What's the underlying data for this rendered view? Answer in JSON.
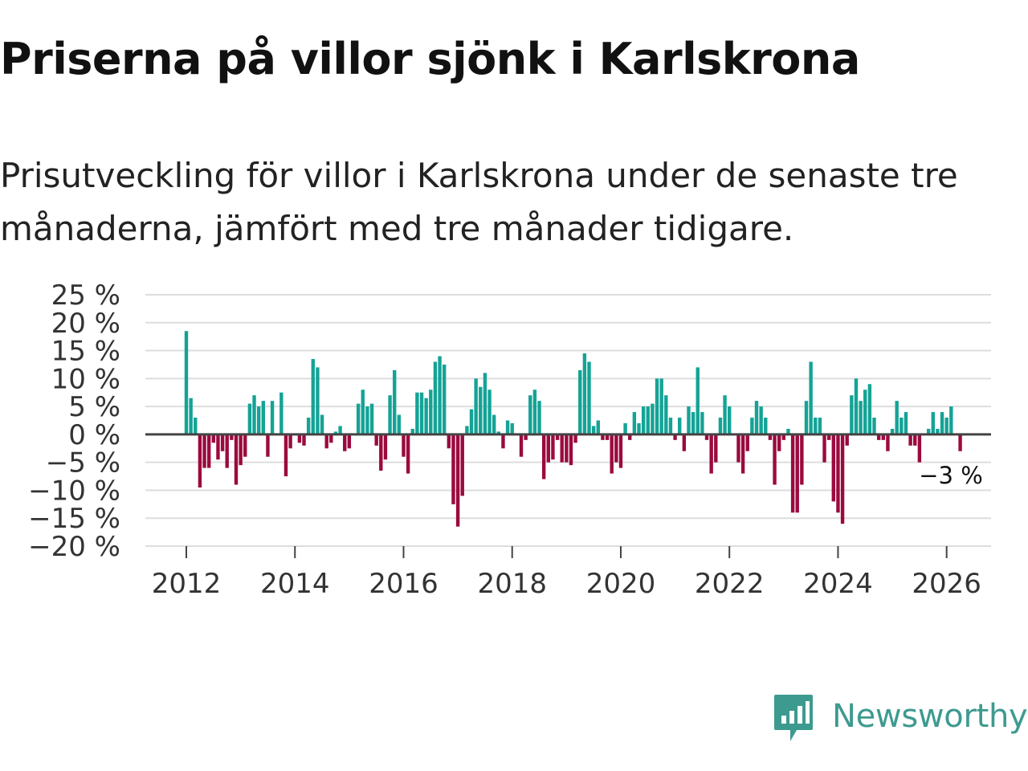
{
  "title": "Priserna på villor sjönk i Karlskrona",
  "subtitle": "Prisutveckling för villor i Karlskrona under de senaste tre månaderna, jämfört med tre månader tidigare.",
  "logo": {
    "text": "Newsworthy",
    "icon": "newsworthy-chart-bubble-icon"
  },
  "colors": {
    "positive": "#14a396",
    "negative": "#9b0a3e",
    "grid": "#dddddd",
    "zero_line": "#444444",
    "logo": "#3d9a8f"
  },
  "chart_data": {
    "type": "bar",
    "title": "Priserna på villor sjönk i Karlskrona",
    "ylabel": "",
    "xlabel": "",
    "ylim": [
      -20,
      25
    ],
    "yticks": [
      25,
      20,
      15,
      10,
      5,
      0,
      -5,
      -10,
      -15,
      -20
    ],
    "ytick_labels": [
      "25 %",
      "20 %",
      "15 %",
      "10 %",
      "5 %",
      "0 %",
      "−5 %",
      "−10 %",
      "−15 %",
      "−20 %"
    ],
    "xticks": [
      "2012",
      "2014",
      "2016",
      "2018",
      "2020",
      "2022",
      "2024",
      "2026"
    ],
    "start": "2012-01",
    "frequency": "monthly",
    "last_value_label": "−3 %",
    "values": [
      18.5,
      6.5,
      3,
      -9.5,
      -6,
      -6,
      -1.5,
      -4.5,
      -3,
      -6,
      -1,
      -9,
      -5.5,
      -4,
      5.5,
      7,
      5,
      6,
      -4,
      6,
      0,
      7.5,
      -7.5,
      -2.5,
      0,
      -1.5,
      -2,
      3,
      13.5,
      12,
      3.5,
      -2.5,
      -1.5,
      0.5,
      1.5,
      -3,
      -2.5,
      0,
      5.5,
      8,
      5,
      5.5,
      -2,
      -6.5,
      -4.5,
      7,
      11.5,
      3.5,
      -4,
      -7,
      1,
      7.5,
      7.5,
      6.5,
      8,
      13,
      14,
      12.5,
      -2.5,
      -12.5,
      -16.5,
      -11,
      1.5,
      4.5,
      10,
      8.5,
      11,
      8,
      3.5,
      0.5,
      -2.5,
      2.5,
      2,
      0,
      -4,
      -1,
      7,
      8,
      6,
      -8,
      -5,
      -4.5,
      -1,
      -5,
      -5,
      -5.5,
      -1.5,
      11.5,
      14.5,
      13,
      1.5,
      2.5,
      -1,
      -1,
      -7,
      -5,
      -6,
      2,
      -1,
      4,
      2,
      5,
      5,
      5.5,
      10,
      10,
      7,
      3,
      -1,
      3,
      -3,
      5,
      4,
      12,
      4,
      -1,
      -7,
      -5,
      3,
      7,
      5,
      0,
      -5,
      -7,
      -3,
      3,
      6,
      5,
      3,
      -1,
      -9,
      -3,
      -1,
      1,
      -14,
      -14,
      -9,
      6,
      13,
      3,
      3,
      -5,
      -1,
      -12,
      -14,
      -16,
      -2,
      7,
      10,
      6,
      8,
      9,
      3,
      -1,
      -1,
      -3,
      1,
      6,
      3,
      4,
      -2,
      -2,
      -5,
      0,
      1,
      4,
      1,
      4,
      3,
      5,
      0,
      -3
    ]
  }
}
